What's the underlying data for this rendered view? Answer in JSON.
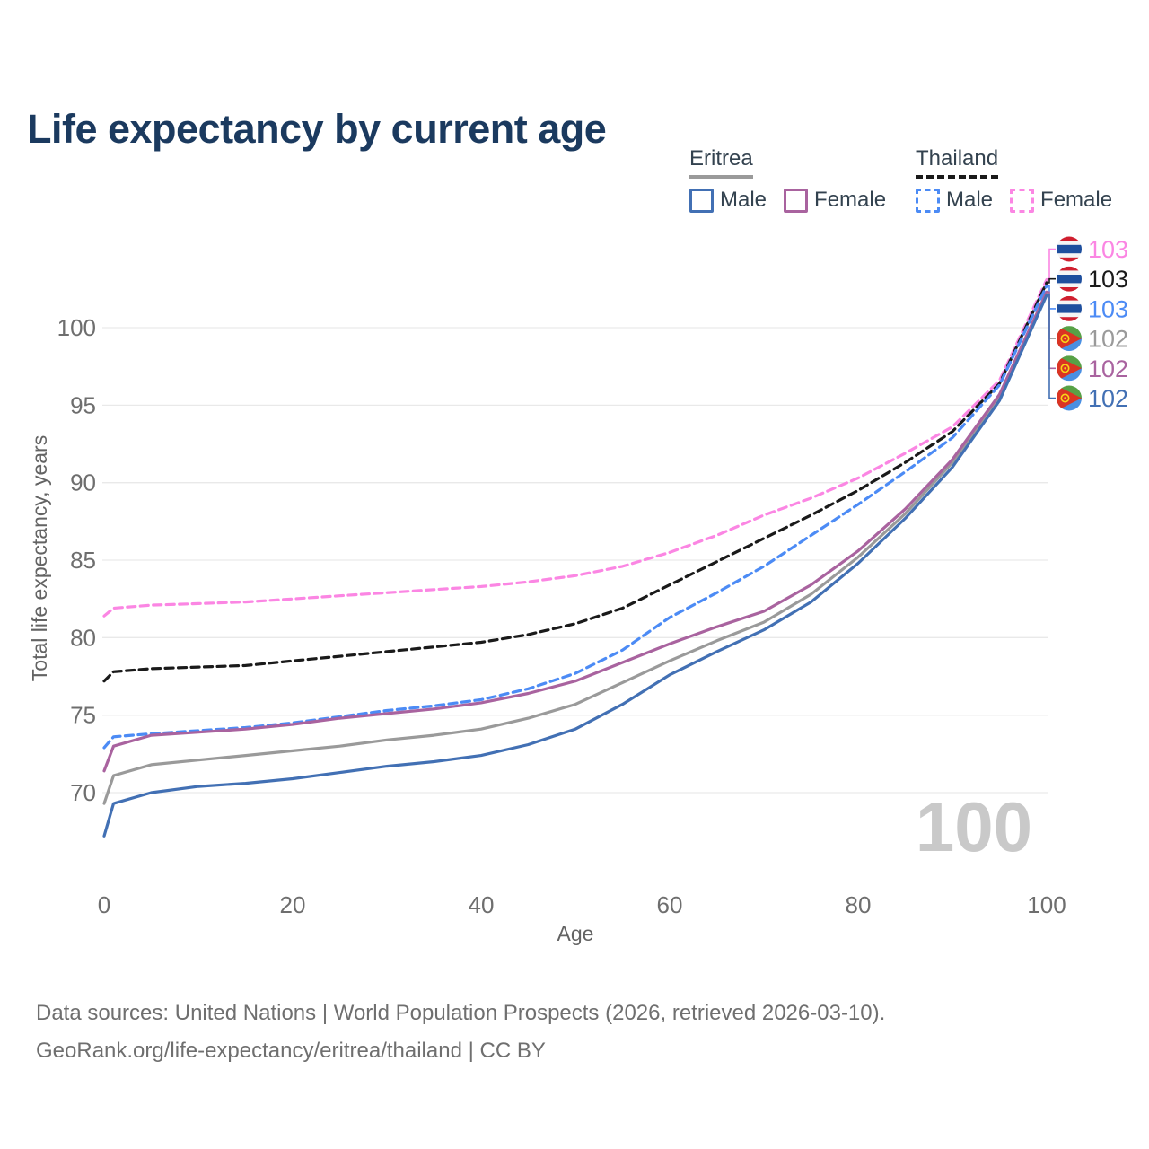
{
  "title": "Life expectancy by current age",
  "watermark": "100",
  "legend": {
    "groups": [
      {
        "country": "Eritrea",
        "line_style": "solid",
        "line_color": "#9a9a9a",
        "items": [
          {
            "label": "Male",
            "color": "#4270b4",
            "style": "solid"
          },
          {
            "label": "Female",
            "color": "#a9639f",
            "style": "solid"
          }
        ]
      },
      {
        "country": "Thailand",
        "line_style": "dashed",
        "line_color": "#1a1a1a",
        "items": [
          {
            "label": "Male",
            "color": "#4c8bf5",
            "style": "dashed"
          },
          {
            "label": "Female",
            "color": "#fb86e3",
            "style": "dashed"
          }
        ]
      }
    ]
  },
  "footer": {
    "line1": "Data sources: United Nations | World Population Prospects (2026, retrieved 2026-03-10).",
    "line2": "GeoRank.org/life-expectancy/eritrea/thailand | CC BY"
  },
  "chart_data": {
    "type": "line",
    "title": "Life expectancy by current age",
    "xlabel": "Age",
    "ylabel": "Total life expectancy, years",
    "x_ticks": [
      0,
      20,
      40,
      60,
      80,
      100
    ],
    "y_ticks": [
      70,
      75,
      80,
      85,
      90,
      95,
      100
    ],
    "xlim": [
      0,
      100
    ],
    "ylim": [
      66.5,
      104
    ],
    "grid": "horizontal",
    "legend_position": "top-right",
    "x": [
      0,
      1,
      5,
      10,
      15,
      20,
      25,
      30,
      35,
      40,
      45,
      50,
      55,
      60,
      65,
      70,
      75,
      80,
      85,
      90,
      95,
      100
    ],
    "series": [
      {
        "name": "Thailand Female",
        "country": "Thailand",
        "sex": "Female",
        "style": "dashed",
        "color": "#fb86e3",
        "end_label": "103",
        "values": [
          81.4,
          81.9,
          82.1,
          82.2,
          82.3,
          82.5,
          82.7,
          82.9,
          83.1,
          83.3,
          83.6,
          84.0,
          84.6,
          85.5,
          86.6,
          87.9,
          89.0,
          90.3,
          91.9,
          93.6,
          96.6,
          103.1
        ]
      },
      {
        "name": "Thailand",
        "country": "Thailand",
        "sex": "Both",
        "style": "dashed",
        "color": "#1a1a1a",
        "end_label": "103",
        "values": [
          77.2,
          77.8,
          78.0,
          78.1,
          78.2,
          78.5,
          78.8,
          79.1,
          79.4,
          79.7,
          80.2,
          80.9,
          81.9,
          83.4,
          84.9,
          86.4,
          87.9,
          89.5,
          91.3,
          93.3,
          96.4,
          102.9
        ]
      },
      {
        "name": "Thailand Male",
        "country": "Thailand",
        "sex": "Male",
        "style": "dashed",
        "color": "#4c8bf5",
        "end_label": "103",
        "values": [
          72.9,
          73.6,
          73.8,
          74.0,
          74.2,
          74.5,
          74.9,
          75.3,
          75.6,
          76.0,
          76.7,
          77.7,
          79.2,
          81.3,
          82.9,
          84.6,
          86.6,
          88.6,
          90.7,
          92.9,
          96.3,
          102.7
        ]
      },
      {
        "name": "Eritrea",
        "country": "Eritrea",
        "sex": "Both",
        "style": "solid",
        "color": "#9a9a9a",
        "end_label": "102",
        "values": [
          69.3,
          71.1,
          71.8,
          72.1,
          72.4,
          72.7,
          73.0,
          73.4,
          73.7,
          74.1,
          74.8,
          75.7,
          77.1,
          78.5,
          79.8,
          81.0,
          82.8,
          85.2,
          88.0,
          91.3,
          95.5,
          102.2
        ]
      },
      {
        "name": "Eritrea Female",
        "country": "Eritrea",
        "sex": "Female",
        "style": "solid",
        "color": "#a9639f",
        "end_label": "102",
        "values": [
          71.4,
          73.0,
          73.7,
          73.9,
          74.1,
          74.4,
          74.8,
          75.1,
          75.4,
          75.8,
          76.4,
          77.2,
          78.4,
          79.6,
          80.7,
          81.7,
          83.4,
          85.6,
          88.3,
          91.5,
          95.7,
          102.3
        ]
      },
      {
        "name": "Eritrea Male",
        "country": "Eritrea",
        "sex": "Male",
        "style": "solid",
        "color": "#4270b4",
        "end_label": "102",
        "values": [
          67.2,
          69.3,
          70.0,
          70.4,
          70.6,
          70.9,
          71.3,
          71.7,
          72.0,
          72.4,
          73.1,
          74.1,
          75.7,
          77.6,
          79.1,
          80.5,
          82.3,
          84.8,
          87.7,
          91.0,
          95.3,
          102.1
        ]
      }
    ]
  }
}
